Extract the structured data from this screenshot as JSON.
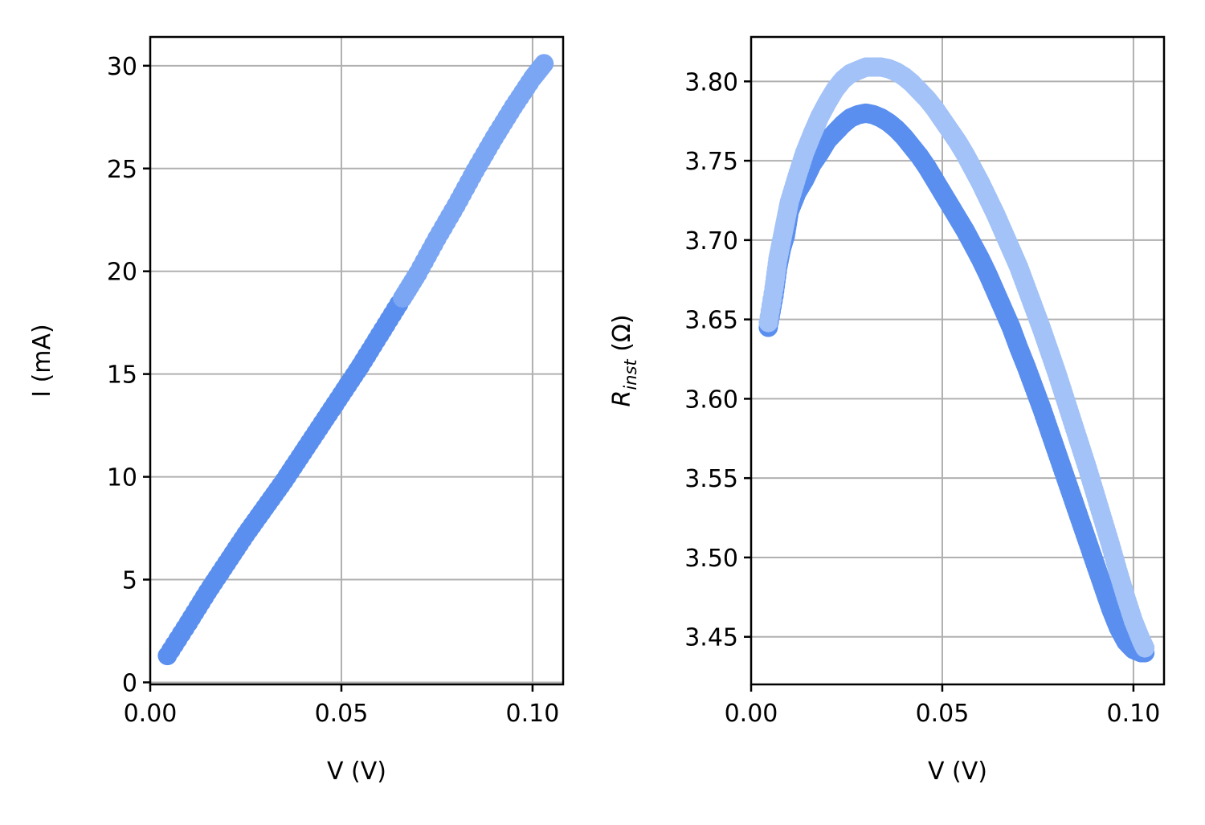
{
  "chart_data": [
    {
      "type": "scatter",
      "title": "",
      "xlabel": "V (V)",
      "ylabel": "I (mA)",
      "xlim": [
        0.0,
        0.108
      ],
      "ylim": [
        -0.1,
        31.4
      ],
      "xticks": [
        0.0,
        0.05,
        0.1
      ],
      "xtick_labels": [
        "0.00",
        "0.05",
        "0.10"
      ],
      "yticks": [
        0,
        5,
        10,
        15,
        20,
        25,
        30
      ],
      "ytick_labels": [
        "0",
        "5",
        "10",
        "15",
        "20",
        "25",
        "30"
      ],
      "grid": true,
      "legend": "none",
      "colors": [
        "#5a8ff0",
        "#7aa6f4",
        "#a2c2f8"
      ],
      "series": [
        {
          "color": "#5a8ff0",
          "points": [
            [
              0.0045,
              1.3
            ],
            [
              0.01,
              2.9
            ],
            [
              0.015,
              4.4
            ],
            [
              0.02,
              5.8
            ],
            [
              0.025,
              7.2
            ],
            [
              0.03,
              8.5
            ],
            [
              0.035,
              9.8
            ],
            [
              0.04,
              11.2
            ],
            [
              0.045,
              12.6
            ],
            [
              0.05,
              14.0
            ],
            [
              0.055,
              15.4
            ],
            [
              0.06,
              16.9
            ],
            [
              0.065,
              18.4
            ]
          ]
        },
        {
          "color": "#7aa6f4",
          "points": [
            [
              0.066,
              18.7
            ],
            [
              0.07,
              19.9
            ],
            [
              0.075,
              21.6
            ],
            [
              0.08,
              23.2
            ],
            [
              0.085,
              24.9
            ],
            [
              0.09,
              26.5
            ],
            [
              0.095,
              28.0
            ],
            [
              0.1,
              29.4
            ],
            [
              0.103,
              30.1
            ]
          ]
        }
      ]
    },
    {
      "type": "scatter",
      "title": "",
      "xlabel": "V (V)",
      "ylabel": "R_inst (Ω)",
      "ylabel_main": "R",
      "ylabel_sub": "inst",
      "ylabel_unit": "(Ω)",
      "xlim": [
        0.0,
        0.108
      ],
      "ylim": [
        3.42,
        3.828
      ],
      "xticks": [
        0.0,
        0.05,
        0.1
      ],
      "xtick_labels": [
        "0.00",
        "0.05",
        "0.10"
      ],
      "yticks": [
        3.45,
        3.5,
        3.55,
        3.6,
        3.65,
        3.7,
        3.75,
        3.8
      ],
      "ytick_labels": [
        "3.45",
        "3.50",
        "3.55",
        "3.60",
        "3.65",
        "3.70",
        "3.75",
        "3.80"
      ],
      "grid": true,
      "legend": "none",
      "colors": [
        "#5a8ff0",
        "#a2c2f8"
      ],
      "series": [
        {
          "color": "#5a8ff0",
          "points": [
            [
              0.0045,
              3.645
            ],
            [
              0.006,
              3.665
            ],
            [
              0.007,
              3.683
            ],
            [
              0.008,
              3.695
            ],
            [
              0.009,
              3.703
            ],
            [
              0.01,
              3.718
            ],
            [
              0.012,
              3.73
            ],
            [
              0.014,
              3.738
            ],
            [
              0.016,
              3.748
            ],
            [
              0.018,
              3.755
            ],
            [
              0.02,
              3.763
            ],
            [
              0.022,
              3.768
            ],
            [
              0.024,
              3.773
            ],
            [
              0.026,
              3.777
            ],
            [
              0.028,
              3.779
            ],
            [
              0.03,
              3.78
            ],
            [
              0.032,
              3.779
            ],
            [
              0.034,
              3.777
            ],
            [
              0.036,
              3.774
            ],
            [
              0.038,
              3.77
            ],
            [
              0.04,
              3.765
            ],
            [
              0.042,
              3.759
            ],
            [
              0.044,
              3.753
            ],
            [
              0.046,
              3.746
            ],
            [
              0.048,
              3.738
            ],
            [
              0.05,
              3.73
            ],
            [
              0.052,
              3.722
            ],
            [
              0.054,
              3.714
            ],
            [
              0.056,
              3.706
            ],
            [
              0.058,
              3.697
            ],
            [
              0.06,
              3.688
            ],
            [
              0.062,
              3.678
            ],
            [
              0.064,
              3.667
            ],
            [
              0.066,
              3.656
            ],
            [
              0.068,
              3.645
            ],
            [
              0.07,
              3.632
            ],
            [
              0.072,
              3.62
            ],
            [
              0.074,
              3.607
            ],
            [
              0.076,
              3.594
            ],
            [
              0.078,
              3.58
            ],
            [
              0.08,
              3.566
            ],
            [
              0.082,
              3.552
            ],
            [
              0.084,
              3.538
            ],
            [
              0.086,
              3.524
            ],
            [
              0.088,
              3.51
            ],
            [
              0.09,
              3.496
            ],
            [
              0.092,
              3.482
            ],
            [
              0.094,
              3.468
            ],
            [
              0.096,
              3.456
            ],
            [
              0.098,
              3.447
            ],
            [
              0.1,
              3.442
            ],
            [
              0.102,
              3.44
            ],
            [
              0.103,
              3.44
            ]
          ]
        },
        {
          "color": "#a2c2f8",
          "points": [
            [
              0.0045,
              3.648
            ],
            [
              0.006,
              3.67
            ],
            [
              0.007,
              3.688
            ],
            [
              0.008,
              3.7
            ],
            [
              0.009,
              3.712
            ],
            [
              0.01,
              3.724
            ],
            [
              0.012,
              3.74
            ],
            [
              0.014,
              3.755
            ],
            [
              0.016,
              3.767
            ],
            [
              0.018,
              3.778
            ],
            [
              0.02,
              3.787
            ],
            [
              0.022,
              3.795
            ],
            [
              0.024,
              3.801
            ],
            [
              0.026,
              3.805
            ],
            [
              0.028,
              3.807
            ],
            [
              0.03,
              3.809
            ],
            [
              0.032,
              3.809
            ],
            [
              0.034,
              3.809
            ],
            [
              0.036,
              3.808
            ],
            [
              0.038,
              3.806
            ],
            [
              0.04,
              3.803
            ],
            [
              0.042,
              3.799
            ],
            [
              0.044,
              3.794
            ],
            [
              0.046,
              3.789
            ],
            [
              0.048,
              3.783
            ],
            [
              0.05,
              3.776
            ],
            [
              0.052,
              3.769
            ],
            [
              0.054,
              3.762
            ],
            [
              0.056,
              3.754
            ],
            [
              0.058,
              3.745
            ],
            [
              0.06,
              3.736
            ],
            [
              0.062,
              3.726
            ],
            [
              0.064,
              3.716
            ],
            [
              0.066,
              3.705
            ],
            [
              0.068,
              3.694
            ],
            [
              0.07,
              3.683
            ],
            [
              0.072,
              3.67
            ],
            [
              0.074,
              3.657
            ],
            [
              0.076,
              3.644
            ],
            [
              0.078,
              3.63
            ],
            [
              0.08,
              3.616
            ],
            [
              0.082,
              3.601
            ],
            [
              0.084,
              3.586
            ],
            [
              0.086,
              3.571
            ],
            [
              0.088,
              3.556
            ],
            [
              0.09,
              3.54
            ],
            [
              0.092,
              3.524
            ],
            [
              0.094,
              3.508
            ],
            [
              0.096,
              3.491
            ],
            [
              0.098,
              3.475
            ],
            [
              0.1,
              3.46
            ],
            [
              0.102,
              3.448
            ],
            [
              0.103,
              3.443
            ]
          ]
        }
      ]
    }
  ]
}
